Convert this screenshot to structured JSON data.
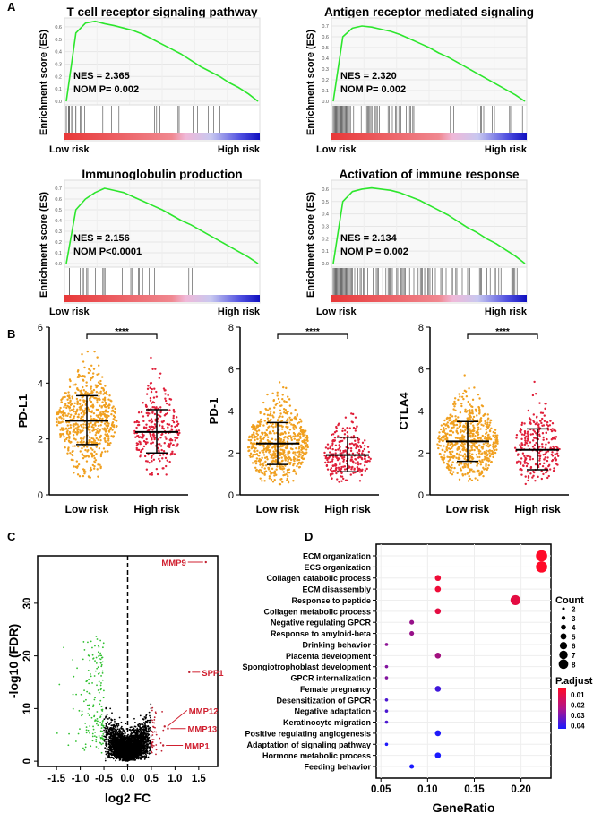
{
  "chart_data": [
    {
      "panel": "A",
      "type": "line",
      "title": "T cell receptor signaling pathway",
      "ylabel": "Enrichment score (ES)",
      "yticks": [
        0.0,
        0.1,
        0.2,
        0.3,
        0.4,
        0.5,
        0.6
      ],
      "nes": "NES = 2.365",
      "nom": "NOM P= 0.002",
      "left_label": "Low risk",
      "right_label": "High risk",
      "es": [
        0,
        0.55,
        0.63,
        0.645,
        0.625,
        0.61,
        0.59,
        0.57,
        0.54,
        0.5,
        0.46,
        0.42,
        0.38,
        0.33,
        0.28,
        0.24,
        0.2,
        0.15,
        0.11,
        0.06,
        0
      ],
      "hit_density": "medium"
    },
    {
      "panel": "A",
      "type": "line",
      "title": "Antigen receptor mediated signaling",
      "ylabel": "Enrichment score (ES)",
      "yticks": [
        0.0,
        0.1,
        0.2,
        0.3,
        0.4,
        0.5,
        0.6,
        0.7
      ],
      "nes": "NES = 2.320",
      "nom": "NOM P= 0.002",
      "left_label": "Low risk",
      "right_label": "High risk",
      "es": [
        0,
        0.6,
        0.68,
        0.7,
        0.69,
        0.67,
        0.65,
        0.62,
        0.58,
        0.54,
        0.5,
        0.45,
        0.41,
        0.36,
        0.31,
        0.26,
        0.21,
        0.16,
        0.11,
        0.06,
        0
      ],
      "hit_density": "high"
    },
    {
      "panel": "A",
      "type": "line",
      "title": "Immunoglobulin production",
      "ylabel": "Enrichment score (ES)",
      "yticks": [
        0.0,
        0.1,
        0.2,
        0.3,
        0.4,
        0.5,
        0.6,
        0.7
      ],
      "nes": "NES = 2.156",
      "nom": "NOM P<0.0001",
      "left_label": "Low risk",
      "right_label": "High risk",
      "es": [
        0,
        0.5,
        0.6,
        0.66,
        0.7,
        0.68,
        0.66,
        0.62,
        0.58,
        0.54,
        0.5,
        0.45,
        0.4,
        0.36,
        0.31,
        0.26,
        0.21,
        0.16,
        0.11,
        0.06,
        0
      ],
      "hit_density": "low"
    },
    {
      "panel": "A",
      "type": "line",
      "title": "Activation of immune response",
      "ylabel": "Enrichment score (ES)",
      "yticks": [
        0.0,
        0.1,
        0.2,
        0.3,
        0.4,
        0.5,
        0.6
      ],
      "nes": "NES = 2.134",
      "nom": "NOM P = 0.002",
      "left_label": "Low risk",
      "right_label": "High risk",
      "es": [
        0,
        0.5,
        0.58,
        0.6,
        0.61,
        0.6,
        0.59,
        0.57,
        0.54,
        0.51,
        0.47,
        0.43,
        0.39,
        0.34,
        0.29,
        0.25,
        0.2,
        0.16,
        0.11,
        0.06,
        0
      ],
      "hit_density": "very high"
    },
    {
      "panel": "B",
      "type": "scatter",
      "ylabel": "PD-L1",
      "ylim": [
        0,
        6
      ],
      "yticks": [
        0,
        2,
        4,
        6
      ],
      "categories": [
        "Low risk",
        "High risk"
      ],
      "significance": "****",
      "groups": [
        {
          "mean": 2.65,
          "sd_low": 1.8,
          "sd_high": 3.55,
          "min": 0.6,
          "max": 5.5,
          "color": "#f0a020"
        },
        {
          "mean": 2.25,
          "sd_low": 1.5,
          "sd_high": 3.05,
          "min": 0.7,
          "max": 5.1,
          "color": "#e0203a"
        }
      ]
    },
    {
      "panel": "B",
      "type": "scatter",
      "ylabel": "PD-1",
      "ylim": [
        0,
        8
      ],
      "yticks": [
        0,
        2,
        4,
        6,
        8
      ],
      "categories": [
        "Low risk",
        "High risk"
      ],
      "significance": "****",
      "groups": [
        {
          "mean": 2.45,
          "sd_low": 1.45,
          "sd_high": 3.45,
          "min": 0.5,
          "max": 7.0,
          "color": "#f0a020"
        },
        {
          "mean": 1.9,
          "sd_low": 1.1,
          "sd_high": 2.75,
          "min": 0.6,
          "max": 5.3,
          "color": "#e0203a"
        }
      ]
    },
    {
      "panel": "B",
      "type": "scatter",
      "ylabel": "CTLA4",
      "ylim": [
        0,
        8
      ],
      "yticks": [
        0,
        2,
        4,
        6,
        8
      ],
      "categories": [
        "Low risk",
        "High risk"
      ],
      "significance": "****",
      "groups": [
        {
          "mean": 2.55,
          "sd_low": 1.6,
          "sd_high": 3.5,
          "min": 0.6,
          "max": 6.2,
          "color": "#f0a020"
        },
        {
          "mean": 2.15,
          "sd_low": 1.2,
          "sd_high": 3.15,
          "min": 0.5,
          "max": 5.5,
          "color": "#e0203a"
        }
      ]
    },
    {
      "panel": "C",
      "type": "scatter",
      "xlabel": "log2 FC",
      "ylabel": "-log10 (FDR)",
      "xlim": [
        -1.9,
        1.9
      ],
      "ylim": [
        -1,
        39
      ],
      "xticks": [
        -1.5,
        -1.0,
        -0.5,
        0.0,
        0.5,
        1.0,
        1.5
      ],
      "yticks": [
        0,
        10,
        20,
        30
      ],
      "colors": {
        "down": "#30c030",
        "ns": "#000000",
        "up": "#c02030"
      },
      "labeled": [
        {
          "label": "MMP9",
          "x": 1.65,
          "y": 37.8
        },
        {
          "label": "SPP1",
          "x": 1.3,
          "y": 16.9
        },
        {
          "label": "MMP12",
          "x": 0.78,
          "y": 6.6
        },
        {
          "label": "MMP13",
          "x": 0.85,
          "y": 6.2
        },
        {
          "label": "MMP1",
          "x": 0.75,
          "y": 3.0
        }
      ]
    },
    {
      "panel": "D",
      "type": "scatter",
      "xlabel": "GeneRatio",
      "xlim": [
        0.045,
        0.232
      ],
      "xticks": [
        0.05,
        0.1,
        0.15,
        0.2
      ],
      "terms": [
        "ECM organization",
        "ECS organization",
        "Collagen catabolic process",
        "ECM disassembly",
        "Response to peptide",
        "Collagen metabolic process",
        "Negative regulating GPCR",
        "Response to amyloid-beta",
        "Drinking behavior",
        "Placenta development",
        "Spongiotrophoblast development",
        "GPCR internalization",
        "Female pregnancy",
        "Desensitization of GPCR",
        "Negative adaptation",
        "Keratinocyte migration",
        "Positive regulating angiogenesis",
        "Adaptation of signaling pathway",
        "Hormone metabolic process",
        "Feeding behavior"
      ],
      "gene_ratio": [
        0.222,
        0.222,
        0.111,
        0.111,
        0.194,
        0.111,
        0.083,
        0.083,
        0.056,
        0.111,
        0.056,
        0.056,
        0.111,
        0.056,
        0.056,
        0.056,
        0.111,
        0.056,
        0.111,
        0.083
      ],
      "count": [
        8,
        8,
        4,
        4,
        7,
        4,
        3,
        3,
        2,
        4,
        2,
        2,
        4,
        2,
        2,
        2,
        4,
        2,
        4,
        3
      ],
      "p_adjust": [
        0.003,
        0.003,
        0.006,
        0.006,
        0.008,
        0.008,
        0.022,
        0.022,
        0.024,
        0.02,
        0.026,
        0.026,
        0.038,
        0.036,
        0.036,
        0.036,
        0.044,
        0.044,
        0.046,
        0.046
      ],
      "count_legend_title": "Count",
      "count_legend": [
        2,
        3,
        4,
        5,
        6,
        7,
        8
      ],
      "padj_legend_title": "P.adjust",
      "padj_legend": [
        0.01,
        0.02,
        0.03,
        0.04
      ],
      "padj_colors": [
        "#ff0a28",
        "#1a1aff"
      ]
    }
  ],
  "panel_labels": [
    "A",
    "B",
    "C",
    "D"
  ]
}
